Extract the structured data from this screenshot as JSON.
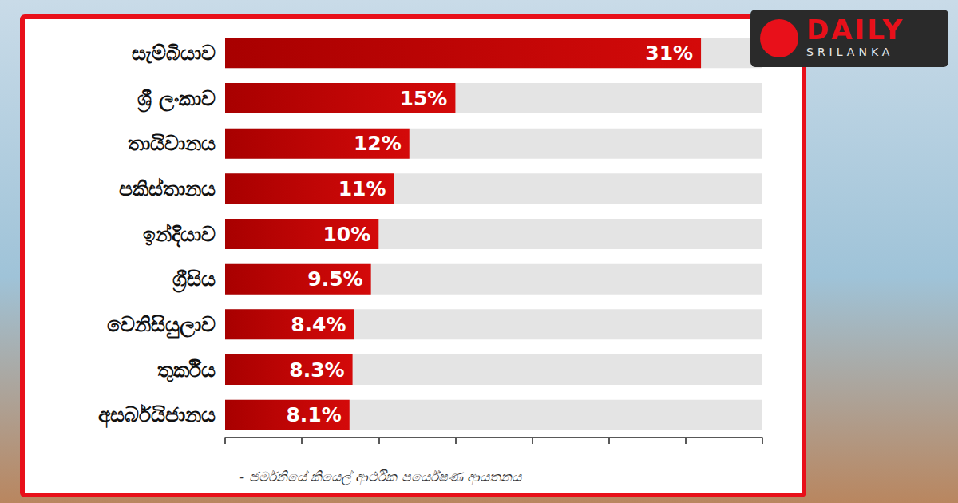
{
  "chart_data": {
    "type": "bar",
    "orientation": "horizontal",
    "categories": [
      "සැම්බියාව",
      "ශ්‍රී ලංකාව",
      "තායිවානය",
      "පකිස්තානය",
      "ඉන්දියාව",
      "ග්‍රීසිය",
      "වෙනිසියුලාව",
      "තුර්කිය",
      "අසර්බයිජානය"
    ],
    "values": [
      31,
      15,
      12,
      11,
      10,
      9.5,
      8.4,
      8.3,
      8.1
    ],
    "value_labels": [
      "31%",
      "15%",
      "12%",
      "11%",
      "10%",
      "9.5%",
      "8.4%",
      "8.3%",
      "8.1%"
    ],
    "data_labels": true,
    "color": "#d40a0a",
    "xlim": [
      0,
      35
    ],
    "xticks": [
      0,
      5,
      10,
      15,
      20,
      25,
      30,
      35
    ],
    "tick_labels": "y",
    "grid": false,
    "annotations": [
      "- ජර්මනියේ කියෙල් ආර්ථික පර්යේෂණ ආයතනය",
      "DAILY",
      "SRILANKA"
    ]
  }
}
